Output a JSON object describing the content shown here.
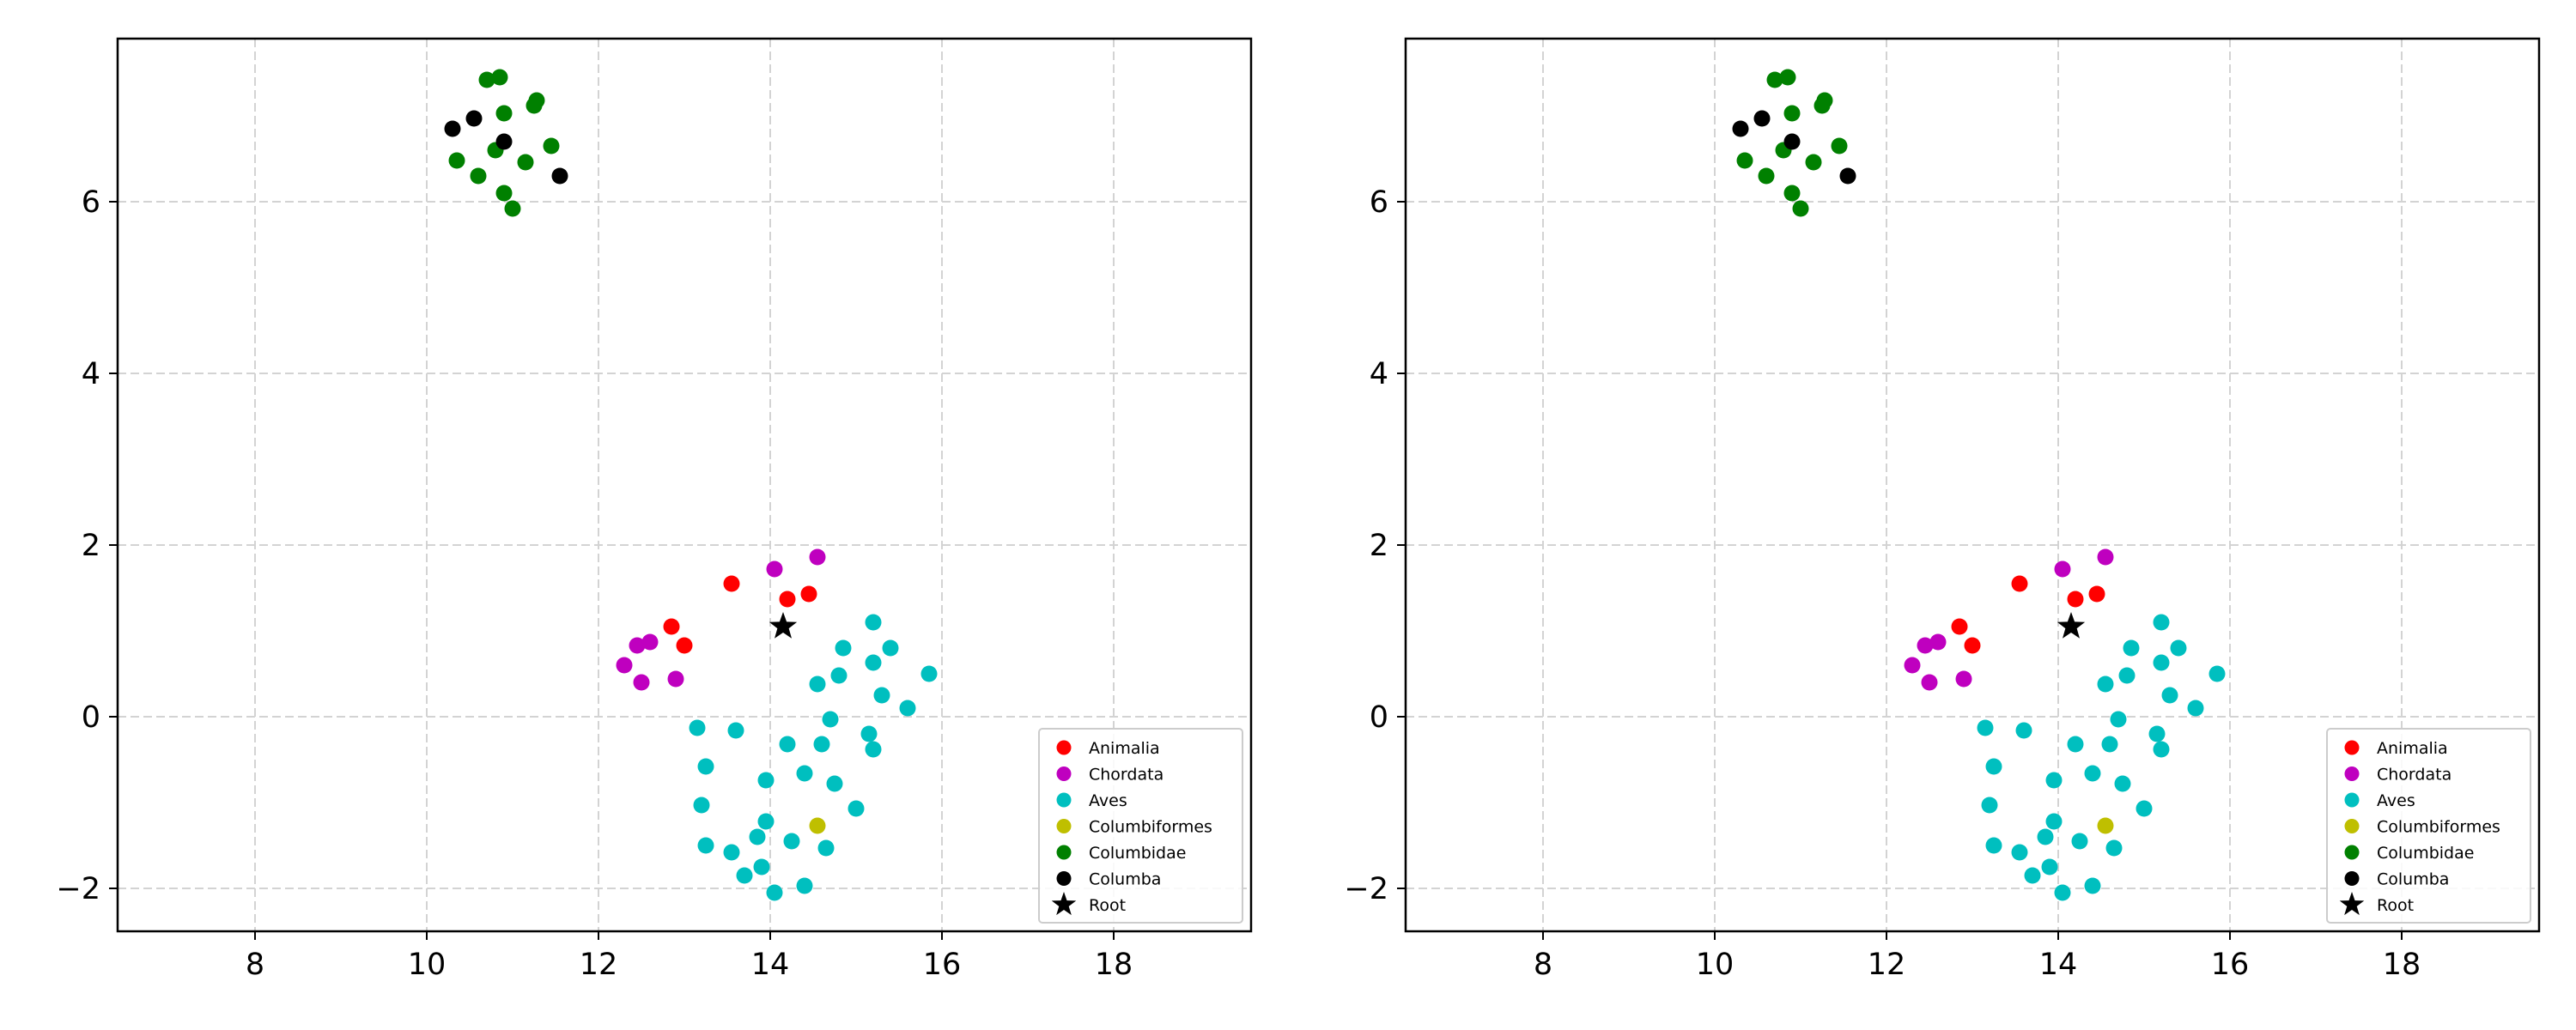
{
  "colors": {
    "Animalia": "#ff0000",
    "Chordata": "#bf00bf",
    "Aves": "#00bfbf",
    "Columbiformes": "#bfbf00",
    "Columbidae": "#008000",
    "Columba": "#000000",
    "Root": "#000000",
    "grid": "#d3d3d3"
  },
  "chart_data": [
    {
      "type": "scatter",
      "title": "",
      "xlabel": "",
      "ylabel": "",
      "xlim": [
        6.4,
        19.6
      ],
      "ylim": [
        -2.5,
        7.9
      ],
      "xticks": [
        8,
        10,
        12,
        14,
        16,
        18
      ],
      "yticks": [
        -2,
        0,
        2,
        4,
        6
      ],
      "xtick_labels": [
        "8",
        "10",
        "12",
        "14",
        "16",
        "18"
      ],
      "ytick_labels": [
        "−2",
        "0",
        "2",
        "4",
        "6"
      ],
      "grid": true,
      "legend_position": "lower-right",
      "series": [
        {
          "name": "Animalia",
          "marker": "circle",
          "points": [
            [
              13.55,
              1.55
            ],
            [
              14.2,
              1.37
            ],
            [
              14.45,
              1.43
            ],
            [
              12.85,
              1.05
            ],
            [
              13.0,
              0.83
            ]
          ]
        },
        {
          "name": "Chordata",
          "marker": "circle",
          "points": [
            [
              14.05,
              1.72
            ],
            [
              14.55,
              1.86
            ],
            [
              12.45,
              0.83
            ],
            [
              12.6,
              0.87
            ],
            [
              12.3,
              0.6
            ],
            [
              12.5,
              0.4
            ],
            [
              12.9,
              0.44
            ]
          ]
        },
        {
          "name": "Aves",
          "marker": "circle",
          "points": [
            [
              15.2,
              1.1
            ],
            [
              14.85,
              0.8
            ],
            [
              15.4,
              0.8
            ],
            [
              15.2,
              0.63
            ],
            [
              14.8,
              0.48
            ],
            [
              14.55,
              0.38
            ],
            [
              15.85,
              0.5
            ],
            [
              15.3,
              0.25
            ],
            [
              15.6,
              0.1
            ],
            [
              14.7,
              -0.03
            ],
            [
              13.15,
              -0.13
            ],
            [
              13.6,
              -0.16
            ],
            [
              15.15,
              -0.2
            ],
            [
              14.2,
              -0.32
            ],
            [
              14.6,
              -0.32
            ],
            [
              15.2,
              -0.38
            ],
            [
              13.25,
              -0.58
            ],
            [
              14.4,
              -0.66
            ],
            [
              13.95,
              -0.74
            ],
            [
              14.75,
              -0.78
            ],
            [
              13.2,
              -1.03
            ],
            [
              15.0,
              -1.07
            ],
            [
              13.95,
              -1.22
            ],
            [
              13.85,
              -1.4
            ],
            [
              13.25,
              -1.5
            ],
            [
              13.55,
              -1.58
            ],
            [
              14.25,
              -1.45
            ],
            [
              14.65,
              -1.53
            ],
            [
              13.9,
              -1.75
            ],
            [
              13.7,
              -1.85
            ],
            [
              14.4,
              -1.97
            ],
            [
              14.05,
              -2.05
            ]
          ]
        },
        {
          "name": "Columbiformes",
          "marker": "circle",
          "points": [
            [
              14.55,
              -1.27
            ]
          ]
        },
        {
          "name": "Columbidae",
          "marker": "circle",
          "points": [
            [
              10.7,
              7.42
            ],
            [
              10.85,
              7.45
            ],
            [
              11.25,
              7.12
            ],
            [
              11.28,
              7.18
            ],
            [
              10.9,
              7.03
            ],
            [
              10.35,
              6.48
            ],
            [
              10.6,
              6.3
            ],
            [
              10.8,
              6.6
            ],
            [
              11.15,
              6.46
            ],
            [
              11.45,
              6.65
            ],
            [
              10.9,
              6.1
            ],
            [
              11.0,
              5.92
            ]
          ]
        },
        {
          "name": "Columba",
          "marker": "circle",
          "points": [
            [
              10.3,
              6.85
            ],
            [
              10.55,
              6.97
            ],
            [
              10.9,
              6.7
            ],
            [
              11.55,
              6.3
            ]
          ]
        },
        {
          "name": "Root",
          "marker": "star",
          "points": [
            [
              14.15,
              1.05
            ]
          ]
        }
      ]
    },
    {
      "type": "scatter",
      "title": "",
      "xlabel": "",
      "ylabel": "",
      "xlim": [
        6.4,
        19.6
      ],
      "ylim": [
        -2.5,
        7.9
      ],
      "xticks": [
        8,
        10,
        12,
        14,
        16,
        18
      ],
      "yticks": [
        -2,
        0,
        2,
        4,
        6
      ],
      "xtick_labels": [
        "8",
        "10",
        "12",
        "14",
        "16",
        "18"
      ],
      "ytick_labels": [
        "−2",
        "0",
        "2",
        "4",
        "6"
      ],
      "grid": true,
      "legend_position": "lower-right",
      "series": [
        {
          "name": "Animalia",
          "marker": "circle",
          "points": [
            [
              13.55,
              1.55
            ],
            [
              14.2,
              1.37
            ],
            [
              14.45,
              1.43
            ],
            [
              12.85,
              1.05
            ],
            [
              13.0,
              0.83
            ]
          ]
        },
        {
          "name": "Chordata",
          "marker": "circle",
          "points": [
            [
              14.05,
              1.72
            ],
            [
              14.55,
              1.86
            ],
            [
              12.45,
              0.83
            ],
            [
              12.6,
              0.87
            ],
            [
              12.3,
              0.6
            ],
            [
              12.5,
              0.4
            ],
            [
              12.9,
              0.44
            ]
          ]
        },
        {
          "name": "Aves",
          "marker": "circle",
          "points": [
            [
              15.2,
              1.1
            ],
            [
              14.85,
              0.8
            ],
            [
              15.4,
              0.8
            ],
            [
              15.2,
              0.63
            ],
            [
              14.8,
              0.48
            ],
            [
              14.55,
              0.38
            ],
            [
              15.85,
              0.5
            ],
            [
              15.3,
              0.25
            ],
            [
              15.6,
              0.1
            ],
            [
              14.7,
              -0.03
            ],
            [
              13.15,
              -0.13
            ],
            [
              13.6,
              -0.16
            ],
            [
              15.15,
              -0.2
            ],
            [
              14.2,
              -0.32
            ],
            [
              14.6,
              -0.32
            ],
            [
              15.2,
              -0.38
            ],
            [
              13.25,
              -0.58
            ],
            [
              14.4,
              -0.66
            ],
            [
              13.95,
              -0.74
            ],
            [
              14.75,
              -0.78
            ],
            [
              13.2,
              -1.03
            ],
            [
              15.0,
              -1.07
            ],
            [
              13.95,
              -1.22
            ],
            [
              13.85,
              -1.4
            ],
            [
              13.25,
              -1.5
            ],
            [
              13.55,
              -1.58
            ],
            [
              14.25,
              -1.45
            ],
            [
              14.65,
              -1.53
            ],
            [
              13.9,
              -1.75
            ],
            [
              13.7,
              -1.85
            ],
            [
              14.4,
              -1.97
            ],
            [
              14.05,
              -2.05
            ]
          ]
        },
        {
          "name": "Columbiformes",
          "marker": "circle",
          "points": [
            [
              14.55,
              -1.27
            ]
          ]
        },
        {
          "name": "Columbidae",
          "marker": "circle",
          "points": [
            [
              10.7,
              7.42
            ],
            [
              10.85,
              7.45
            ],
            [
              11.25,
              7.12
            ],
            [
              11.28,
              7.18
            ],
            [
              10.9,
              7.03
            ],
            [
              10.35,
              6.48
            ],
            [
              10.6,
              6.3
            ],
            [
              10.8,
              6.6
            ],
            [
              11.15,
              6.46
            ],
            [
              11.45,
              6.65
            ],
            [
              10.9,
              6.1
            ],
            [
              11.0,
              5.92
            ]
          ]
        },
        {
          "name": "Columba",
          "marker": "circle",
          "points": [
            [
              10.3,
              6.85
            ],
            [
              10.55,
              6.97
            ],
            [
              10.9,
              6.7
            ],
            [
              11.55,
              6.3
            ]
          ]
        },
        {
          "name": "Root",
          "marker": "star",
          "points": [
            [
              14.15,
              1.05
            ]
          ]
        }
      ]
    }
  ]
}
